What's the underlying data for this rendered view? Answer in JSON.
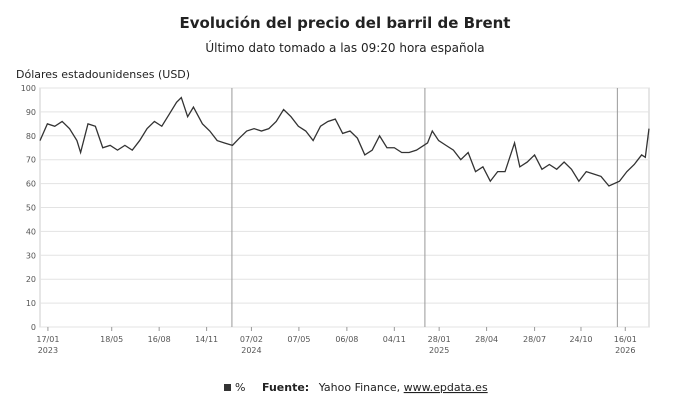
{
  "chart_data": {
    "type": "line",
    "title": "Evolución del precio del barril de Brent",
    "subtitle": "Último dato tomado a las 09:20 hora española",
    "y_label": "Dólares estadounidenses (USD)",
    "ylim": [
      0,
      100
    ],
    "yticks": [
      0,
      10,
      20,
      30,
      40,
      50,
      60,
      70,
      80,
      90,
      100
    ],
    "grid": true,
    "xlim": [
      "2023-01-02",
      "2026-03-02"
    ],
    "xticks": [
      {
        "value": "2023-01-17",
        "label": "17/01",
        "year": "2023"
      },
      {
        "value": "2023-05-18",
        "label": "18/05"
      },
      {
        "value": "2023-08-16",
        "label": "16/08"
      },
      {
        "value": "2023-11-14",
        "label": "14/11"
      },
      {
        "value": "2024-02-07",
        "label": "07/02",
        "year": "2024"
      },
      {
        "value": "2024-05-07",
        "label": "07/05"
      },
      {
        "value": "2024-08-06",
        "label": "06/08"
      },
      {
        "value": "2024-11-04",
        "label": "04/11"
      },
      {
        "value": "2025-01-28",
        "label": "28/01",
        "year": "2025"
      },
      {
        "value": "2025-04-28",
        "label": "28/04"
      },
      {
        "value": "2025-07-28",
        "label": "28/07"
      },
      {
        "value": "2025-10-24",
        "label": "24/10"
      },
      {
        "value": "2026-01-16",
        "label": "16/01",
        "year": "2026"
      }
    ],
    "x": [
      "2023-01-02",
      "2023-01-16",
      "2023-01-30",
      "2023-02-13",
      "2023-02-27",
      "2023-03-13",
      "2023-03-20",
      "2023-04-03",
      "2023-04-17",
      "2023-05-01",
      "2023-05-15",
      "2023-05-29",
      "2023-06-12",
      "2023-06-26",
      "2023-07-10",
      "2023-07-24",
      "2023-08-07",
      "2023-08-21",
      "2023-09-04",
      "2023-09-18",
      "2023-09-27",
      "2023-10-09",
      "2023-10-20",
      "2023-11-06",
      "2023-11-20",
      "2023-12-04",
      "2023-12-18",
      "2024-01-02",
      "2024-01-15",
      "2024-01-29",
      "2024-02-12",
      "2024-02-26",
      "2024-03-11",
      "2024-03-25",
      "2024-04-08",
      "2024-04-22",
      "2024-05-06",
      "2024-05-20",
      "2024-06-03",
      "2024-06-17",
      "2024-07-01",
      "2024-07-15",
      "2024-07-29",
      "2024-08-12",
      "2024-08-26",
      "2024-09-09",
      "2024-09-23",
      "2024-10-07",
      "2024-10-21",
      "2024-11-04",
      "2024-11-18",
      "2024-12-02",
      "2024-12-16",
      "2025-01-06",
      "2025-01-15",
      "2025-01-27",
      "2025-02-10",
      "2025-02-24",
      "2025-03-10",
      "2025-03-24",
      "2025-04-07",
      "2025-04-21",
      "2025-05-05",
      "2025-05-19",
      "2025-06-02",
      "2025-06-20",
      "2025-06-30",
      "2025-07-14",
      "2025-07-28",
      "2025-08-11",
      "2025-08-25",
      "2025-09-08",
      "2025-09-22",
      "2025-10-06",
      "2025-10-20",
      "2025-11-03",
      "2025-11-17",
      "2025-12-01",
      "2025-12-16",
      "2026-01-05",
      "2026-01-19",
      "2026-02-02",
      "2026-02-16",
      "2026-02-23",
      "2026-03-02"
    ],
    "series": [
      {
        "name": "%",
        "color": "#333333",
        "values": [
          78,
          85,
          84,
          86,
          83,
          78,
          73,
          85,
          84,
          75,
          76,
          74,
          76,
          74,
          78,
          83,
          86,
          84,
          89,
          94,
          96,
          88,
          92,
          85,
          82,
          78,
          77,
          76,
          79,
          82,
          83,
          82,
          83,
          86,
          91,
          88,
          84,
          82,
          78,
          84,
          86,
          87,
          81,
          82,
          79,
          72,
          74,
          80,
          75,
          75,
          73,
          73,
          74,
          77,
          82,
          78,
          76,
          74,
          70,
          73,
          65,
          67,
          61,
          65,
          65,
          77,
          67,
          69,
          72,
          66,
          68,
          66,
          69,
          66,
          61,
          65,
          64,
          63,
          59,
          61,
          65,
          68,
          72,
          71,
          83
        ]
      }
    ],
    "source": {
      "label": "Fuente:",
      "text": "Yahoo Finance, ",
      "link": "www.epdata.es"
    }
  }
}
